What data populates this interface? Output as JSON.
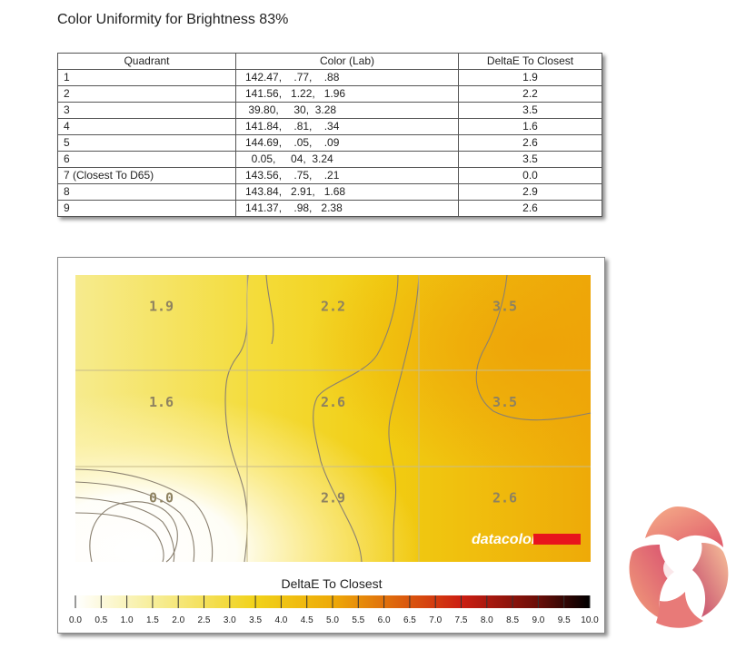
{
  "page": {
    "title": "Color Uniformity for Brightness 83%"
  },
  "table": {
    "headers": [
      "Quadrant",
      "Color (Lab)",
      "DeltaE To Closest"
    ],
    "rows": [
      {
        "quadrant": "1",
        "lab": "142.47,    .77,    .88",
        "delta": "1.9"
      },
      {
        "quadrant": "2",
        "lab": "141.56,   1.22,   1.96",
        "delta": "2.2"
      },
      {
        "quadrant": "3",
        "lab": " 39.80,     30,  3.28",
        "delta": "3.5"
      },
      {
        "quadrant": "4",
        "lab": "141.84,    .81,    .34",
        "delta": "1.6"
      },
      {
        "quadrant": "5",
        "lab": "144.69,    .05,    .09",
        "delta": "2.6"
      },
      {
        "quadrant": "6",
        "lab": "  0.05,     04,  3.24",
        "delta": "3.5"
      },
      {
        "quadrant": "7 (Closest To D65)",
        "lab": "143.56,    .75,    .21",
        "delta": "0.0"
      },
      {
        "quadrant": "8",
        "lab": "143.84,   2.91,   1.68",
        "delta": "2.9"
      },
      {
        "quadrant": "9",
        "lab": "141.37,    .98,   2.38",
        "delta": "2.6"
      }
    ]
  },
  "chart_data": {
    "type": "heatmap",
    "title": "DeltaE To Closest",
    "grid": true,
    "rows": 3,
    "cols": 3,
    "values": [
      [
        1.9,
        2.2,
        3.5
      ],
      [
        1.6,
        2.6,
        3.5
      ],
      [
        0.0,
        2.9,
        2.6
      ]
    ],
    "scale_ticks": [
      "0.0",
      "0.5",
      "1.0",
      "1.5",
      "2.0",
      "2.5",
      "3.0",
      "3.5",
      "4.0",
      "4.5",
      "5.0",
      "5.5",
      "6.0",
      "6.5",
      "7.0",
      "7.5",
      "8.0",
      "8.5",
      "9.0",
      "9.5",
      "10.0"
    ],
    "scale_range": [
      0,
      10
    ],
    "watermark": "datacolor",
    "colors": {
      "low": "#ffffff",
      "mid_low": "#f7ee9a",
      "mid": "#f1d21a",
      "high_mid": "#eeaa08",
      "high": "#cc1e12",
      "max": "#000000",
      "brand": "#e8141c"
    }
  }
}
